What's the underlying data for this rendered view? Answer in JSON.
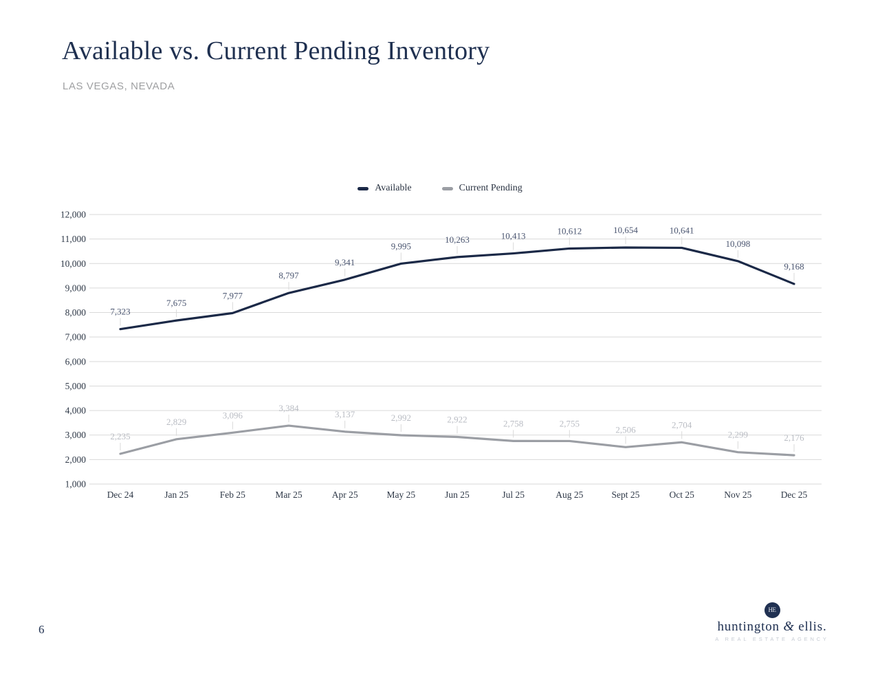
{
  "page": {
    "number": "6"
  },
  "header": {
    "title": "Available vs. Current Pending Inventory",
    "subtitle": "LAS VEGAS, NEVADA"
  },
  "chart_data": {
    "type": "line",
    "title": "",
    "categories": [
      "Dec 24",
      "Jan 25",
      "Feb 25",
      "Mar 25",
      "Apr 25",
      "May 25",
      "Jun 25",
      "Jul 25",
      "Aug 25",
      "Sept 25",
      "Oct 25",
      "Nov 25",
      "Dec 25"
    ],
    "series": [
      {
        "name": "Available",
        "color": "#1b2947",
        "label_color": "#4a5570",
        "values": [
          7323,
          7675,
          7977,
          8797,
          9341,
          9995,
          10263,
          10413,
          10612,
          10654,
          10641,
          10098,
          9168
        ]
      },
      {
        "name": "Current Pending",
        "color": "#9b9ea4",
        "label_color": "#b9bcc3",
        "values": [
          2235,
          2829,
          3096,
          3384,
          3137,
          2992,
          2922,
          2758,
          2755,
          2506,
          2704,
          2299,
          2176
        ]
      }
    ],
    "ylim": [
      1000,
      12000
    ],
    "ytick_step": 1000,
    "ytick_labels": [
      "1,000",
      "2,000",
      "3,000",
      "4,000",
      "5,000",
      "6,000",
      "7,000",
      "8,000",
      "9,000",
      "10,000",
      "11,000",
      "12,000"
    ],
    "grid": "horizontal",
    "gridline_color": "#d9d9d9",
    "axis_label_color": "#2e3847",
    "legend_position": "top-center",
    "data_labels": "above-points",
    "number_format": "thousands-comma"
  },
  "footer": {
    "logo": {
      "monogram": "HE",
      "name": "huntington & ellis.",
      "tagline": "A REAL ESTATE AGENCY"
    },
    "brand_color": "#203152"
  }
}
